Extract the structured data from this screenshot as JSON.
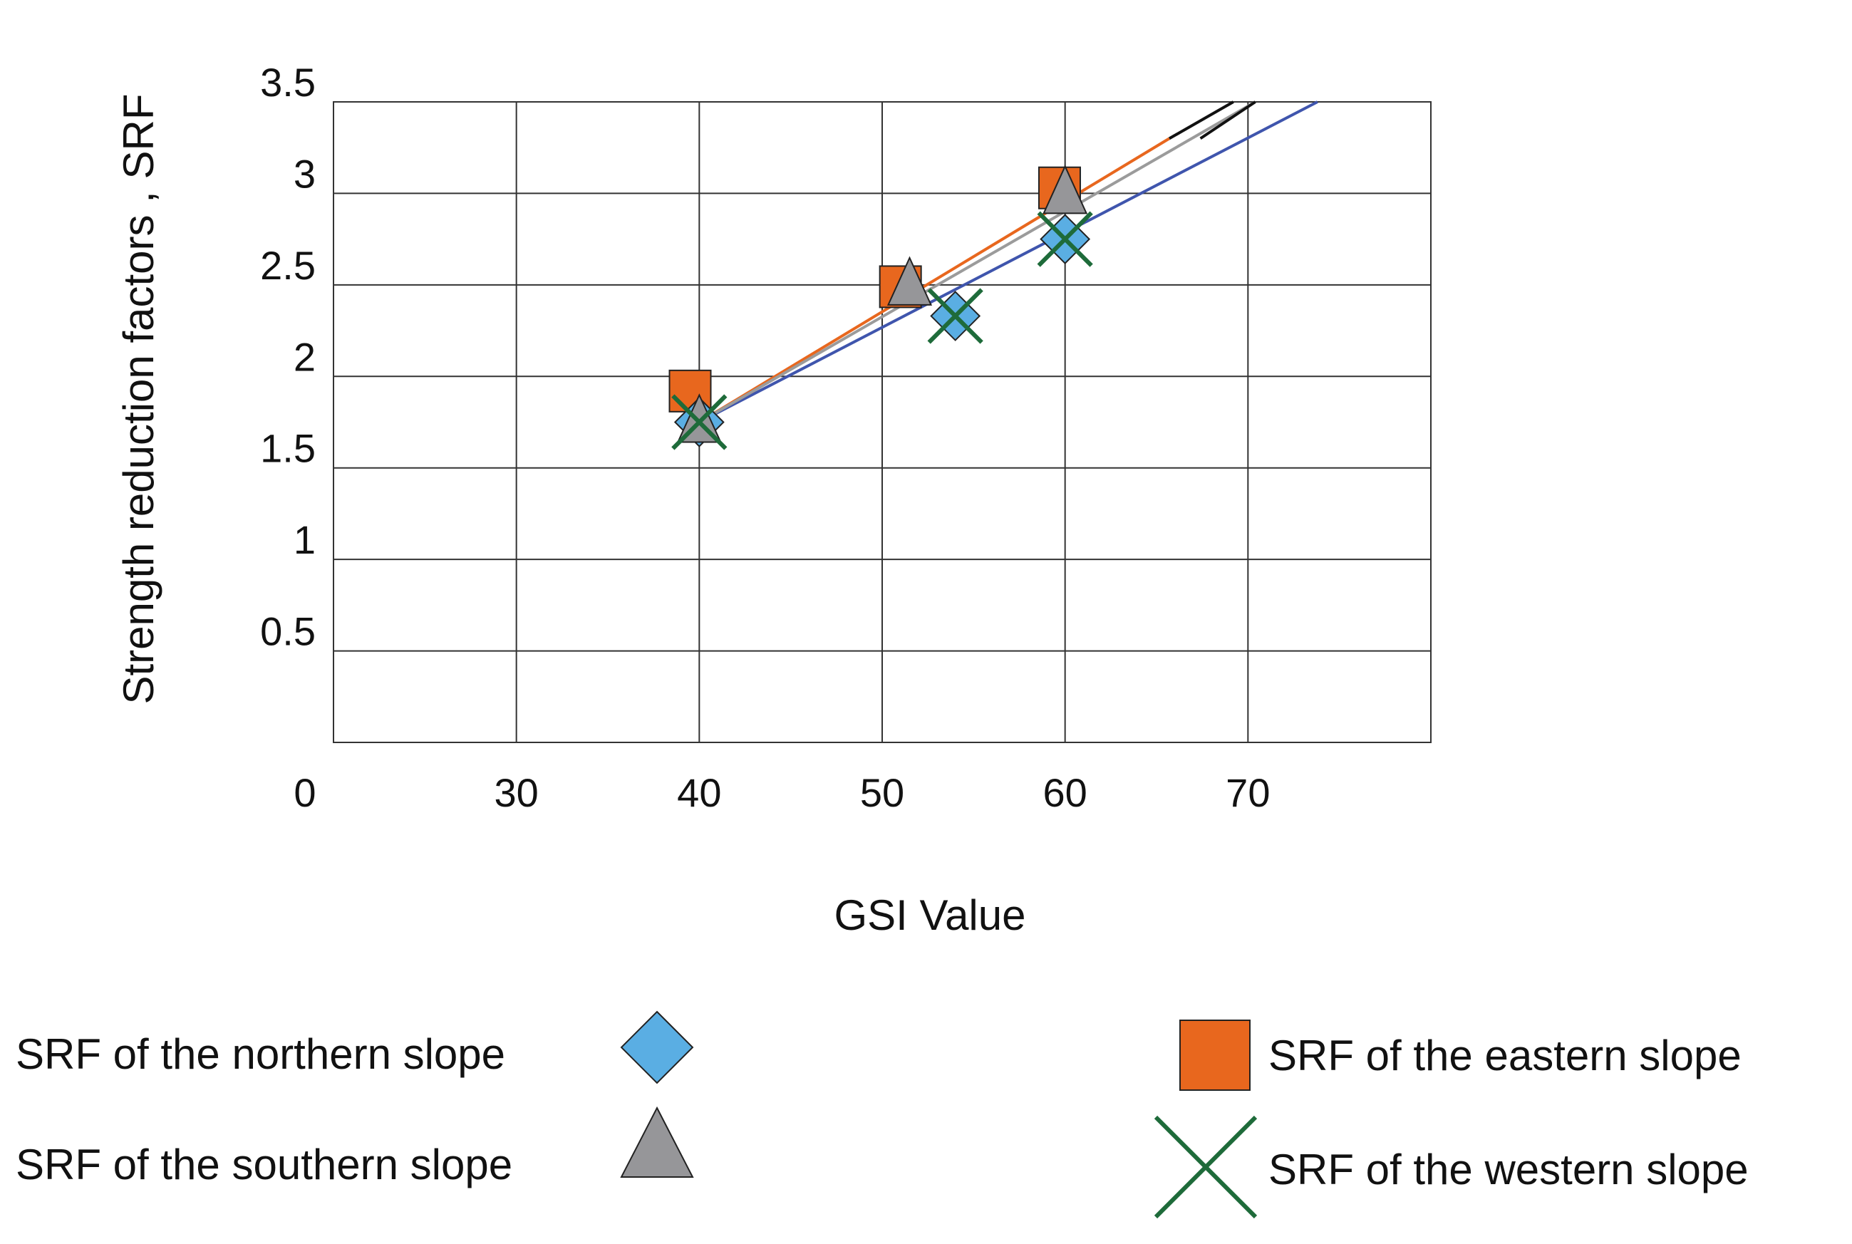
{
  "chart_data": {
    "type": "scatter",
    "xlabel": "GSI Value",
    "ylabel": "Strength reduction factors , SRF",
    "x_ticks": [
      "0",
      "30",
      "40",
      "50",
      "60",
      "70"
    ],
    "y_ticks": [
      "0.5",
      "1",
      "1.5",
      "2",
      "2.5",
      "3",
      "3.5"
    ],
    "xlim": [
      20,
      80
    ],
    "ylim": [
      0,
      3.5
    ],
    "grid": true,
    "legend_placement": "bottom",
    "series": [
      {
        "name": "SRF of the northern slope",
        "marker": "diamond",
        "color": "#5aaee3",
        "x": [
          40,
          54,
          60
        ],
        "y": [
          1.75,
          2.33,
          2.75
        ],
        "trend_color": "#3f55ad",
        "trend_x": [
          40,
          73.8
        ],
        "trend_y": [
          1.75,
          3.5
        ]
      },
      {
        "name": "SRF of the eastern slope",
        "marker": "square",
        "color": "#e8671e",
        "x": [
          39.5,
          51,
          59.7
        ],
        "y": [
          1.92,
          2.49,
          3.03
        ],
        "trend_color": "#e8671e",
        "trend_x": [
          40,
          65.7
        ],
        "trend_y": [
          1.75,
          3.3
        ]
      },
      {
        "name": "SRF of the southern slope",
        "marker": "triangle",
        "color": "#969699",
        "x": [
          40,
          51.5,
          60
        ],
        "y": [
          1.75,
          2.5,
          3.0
        ],
        "trend_color": "#9b9b9b",
        "trend_x": [
          40,
          70.4
        ],
        "trend_y": [
          1.75,
          3.5
        ]
      },
      {
        "name": "SRF of the western slope",
        "marker": "x",
        "color": "#1e6b3a",
        "x": [
          40,
          54,
          60
        ],
        "y": [
          1.75,
          2.33,
          2.75
        ]
      }
    ]
  }
}
